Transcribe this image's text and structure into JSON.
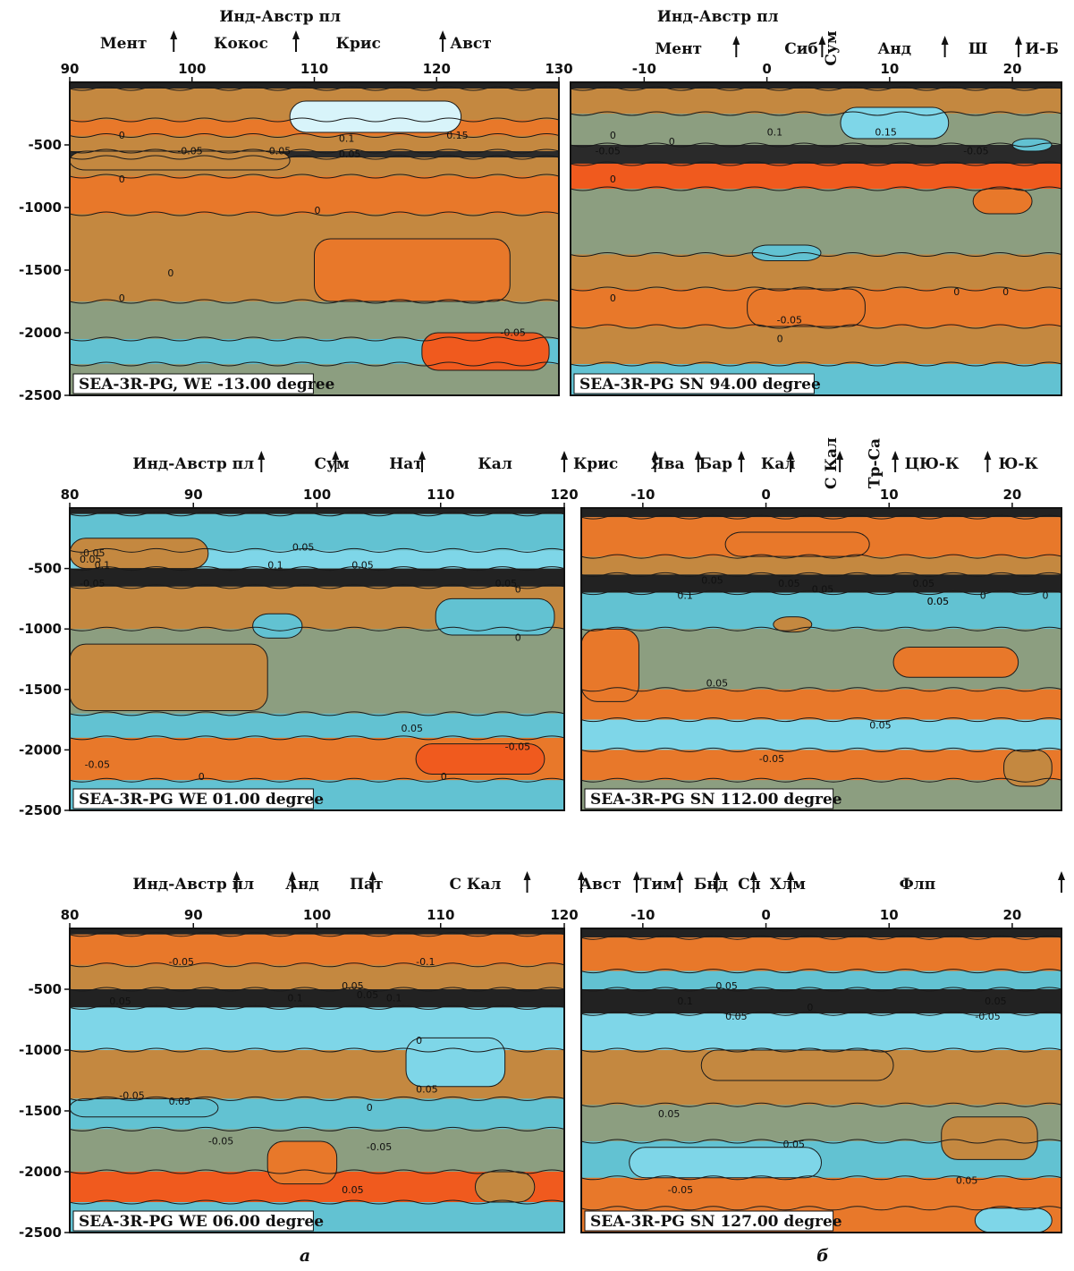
{
  "palette": {
    "neutral": "#8C9E80",
    "weak_negative": "#C48840",
    "negative": "#E8782A",
    "strong_negative": "#F05A1E",
    "weak_positive": "#62C2D2",
    "positive": "#7ED6E8",
    "strong_positive": "#D8F4FA",
    "contour_line": "#1a1a1a"
  },
  "subfigure_labels": [
    "а",
    "б"
  ],
  "chart_data": [
    {
      "id": "p1",
      "type": "heatmap",
      "column": "а",
      "caption": "SEA-3R-PG, WE -13.00 degree",
      "x_ticks": [
        "90",
        "100",
        "110",
        "120",
        "130"
      ],
      "xlim": [
        90,
        130
      ],
      "y_ticks": [
        "-500",
        "-1000",
        "-1500",
        "-2000",
        "-2500"
      ],
      "ylim": [
        -2500,
        0
      ],
      "region_labels": [
        "Инд-Австр пл",
        "Мент",
        "Кокос",
        "Крис",
        "Авст"
      ],
      "contour_labels": [
        "0",
        "0",
        "0",
        "0",
        "0",
        "-0.05",
        "-0.05",
        "0.1",
        "0.15",
        "0.05",
        "-0.05"
      ],
      "arrow_x": [
        98.5,
        108.5,
        120.5
      ]
    },
    {
      "id": "p2",
      "type": "heatmap",
      "column": "б",
      "caption": "SEA-3R-PG   SN 94.00 degree",
      "x_ticks": [
        "-10",
        "0",
        "10",
        "20"
      ],
      "xlim": [
        -16,
        24
      ],
      "y_ticks": [],
      "ylim": [
        -2500,
        0
      ],
      "region_labels": [
        "Инд-Австр пл",
        "Мент",
        "Сиб",
        "Сум",
        "Анд",
        "Ш",
        "И-Б"
      ],
      "contour_labels": [
        "0",
        "0",
        "0",
        "0",
        "-0.05",
        "-0.05",
        "0.1",
        "0.15",
        "-0.05",
        "0",
        "0",
        "0"
      ],
      "arrow_x": [
        -2.5,
        4.5,
        14.5,
        20.5
      ]
    },
    {
      "id": "p3",
      "type": "heatmap",
      "column": "а",
      "caption": "SEA-3R-PG   WE 01.00 degree",
      "x_ticks": [
        "80",
        "90",
        "100",
        "110",
        "120"
      ],
      "xlim": [
        80,
        120
      ],
      "y_ticks": [
        "-500",
        "-1000",
        "-1500",
        "-2000",
        "-2500"
      ],
      "ylim": [
        -2500,
        0
      ],
      "region_labels": [
        "Инд-Австр пл",
        "Сум",
        "Нат",
        "Кал"
      ],
      "contour_labels": [
        "-0.05",
        "0.05",
        "0.1",
        "-0.05",
        "0.05",
        "0.1",
        "0.05",
        "0.05",
        "0",
        "0",
        "-0.05",
        "0.05",
        "-0.05",
        "0",
        "0"
      ],
      "arrow_x": [
        95.5,
        101.5,
        108.5,
        120
      ]
    },
    {
      "id": "p4",
      "type": "heatmap",
      "column": "б",
      "caption": "SEA-3R-PG   SN 112.00 degree",
      "x_ticks": [
        "-10",
        "0",
        "10",
        "20"
      ],
      "xlim": [
        -15,
        24
      ],
      "y_ticks": [],
      "ylim": [
        -2500,
        0
      ],
      "region_labels": [
        "Крис",
        "Ява",
        "Бар",
        "Кал",
        "С Кал",
        "Тр-Са",
        "ЦЮ-К",
        "Ю-К"
      ],
      "contour_labels": [
        "0.05",
        "0.1",
        "0.05",
        "0.05",
        "0.05",
        "0.05",
        "0.05",
        "-0.05",
        "0.05",
        "0",
        "0",
        "0.05"
      ],
      "arrow_x": [
        -9,
        -5.5,
        -2,
        2,
        6,
        10.5,
        18
      ]
    },
    {
      "id": "p5",
      "type": "heatmap",
      "column": "а",
      "caption": "SEA-3R-PG   WE 06.00 degree",
      "x_ticks": [
        "80",
        "90",
        "100",
        "110",
        "120"
      ],
      "xlim": [
        80,
        120
      ],
      "y_ticks": [
        "-500",
        "-1000",
        "-1500",
        "-2000",
        "-2500"
      ],
      "ylim": [
        -2500,
        0
      ],
      "region_labels": [
        "Инд-Австр пл",
        "Анд",
        "Пат",
        "С Кал"
      ],
      "contour_labels": [
        "-0.05",
        "-0.1",
        "0.05",
        "0.05",
        "0.1",
        "0.05",
        "0.1",
        "0",
        "0.05",
        "-0.05",
        "0.05",
        "-0.05",
        "-0.05",
        "0.05",
        "0"
      ],
      "arrow_x": [
        93.5,
        98,
        104.5,
        117
      ]
    },
    {
      "id": "p6",
      "type": "heatmap",
      "column": "б",
      "caption": "SEA-3R-PG   SN 127.00 degree",
      "x_ticks": [
        "-10",
        "0",
        "10",
        "20"
      ],
      "xlim": [
        -15,
        24
      ],
      "y_ticks": [],
      "ylim": [
        -2500,
        0
      ],
      "region_labels": [
        "Авст",
        "Тим",
        "Бнд",
        "Сл",
        "Хлм",
        "Флп"
      ],
      "contour_labels": [
        "0.05",
        "0.1",
        "0.05",
        "0.05",
        "-0.05",
        "0.05",
        "0",
        "0.05",
        "-0.05",
        "0.05"
      ],
      "arrow_x": [
        -15,
        -10.5,
        -7,
        -4,
        -1,
        2,
        24
      ]
    }
  ]
}
